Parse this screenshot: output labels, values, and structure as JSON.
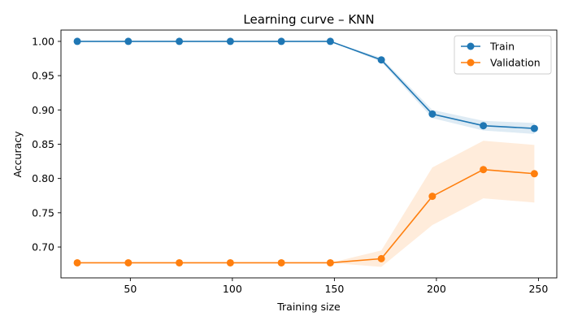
{
  "chart_data": {
    "type": "line",
    "title": "Learning curve – KNN",
    "xlabel": "Training size",
    "ylabel": "Accuracy",
    "xlim": [
      16,
      259
    ],
    "ylim": [
      0.655,
      1.0165
    ],
    "xticks": [
      50,
      100,
      150,
      200,
      250
    ],
    "yticks": [
      0.7,
      0.75,
      0.8,
      0.85,
      0.9,
      0.95,
      1.0
    ],
    "x": [
      24,
      49,
      74,
      99,
      124,
      148,
      173,
      198,
      223,
      248
    ],
    "series": [
      {
        "name": "Train",
        "color": "#1f77b4",
        "values": [
          1.0,
          1.0,
          1.0,
          1.0,
          1.0,
          1.0,
          0.973,
          0.894,
          0.877,
          0.873
        ],
        "band_low": [
          1.0,
          1.0,
          1.0,
          1.0,
          1.0,
          1.0,
          0.97,
          0.888,
          0.87,
          0.865
        ],
        "band_high": [
          1.0,
          1.0,
          1.0,
          1.0,
          1.0,
          1.0,
          0.976,
          0.9,
          0.884,
          0.881
        ]
      },
      {
        "name": "Validation",
        "color": "#ff7f0e",
        "values": [
          0.677,
          0.677,
          0.677,
          0.677,
          0.677,
          0.677,
          0.683,
          0.774,
          0.813,
          0.807
        ],
        "band_low": [
          0.677,
          0.677,
          0.677,
          0.677,
          0.677,
          0.677,
          0.671,
          0.732,
          0.771,
          0.765
        ],
        "band_high": [
          0.677,
          0.677,
          0.677,
          0.677,
          0.677,
          0.677,
          0.695,
          0.816,
          0.855,
          0.849
        ]
      }
    ],
    "grid": false,
    "legend": "upper-right"
  }
}
